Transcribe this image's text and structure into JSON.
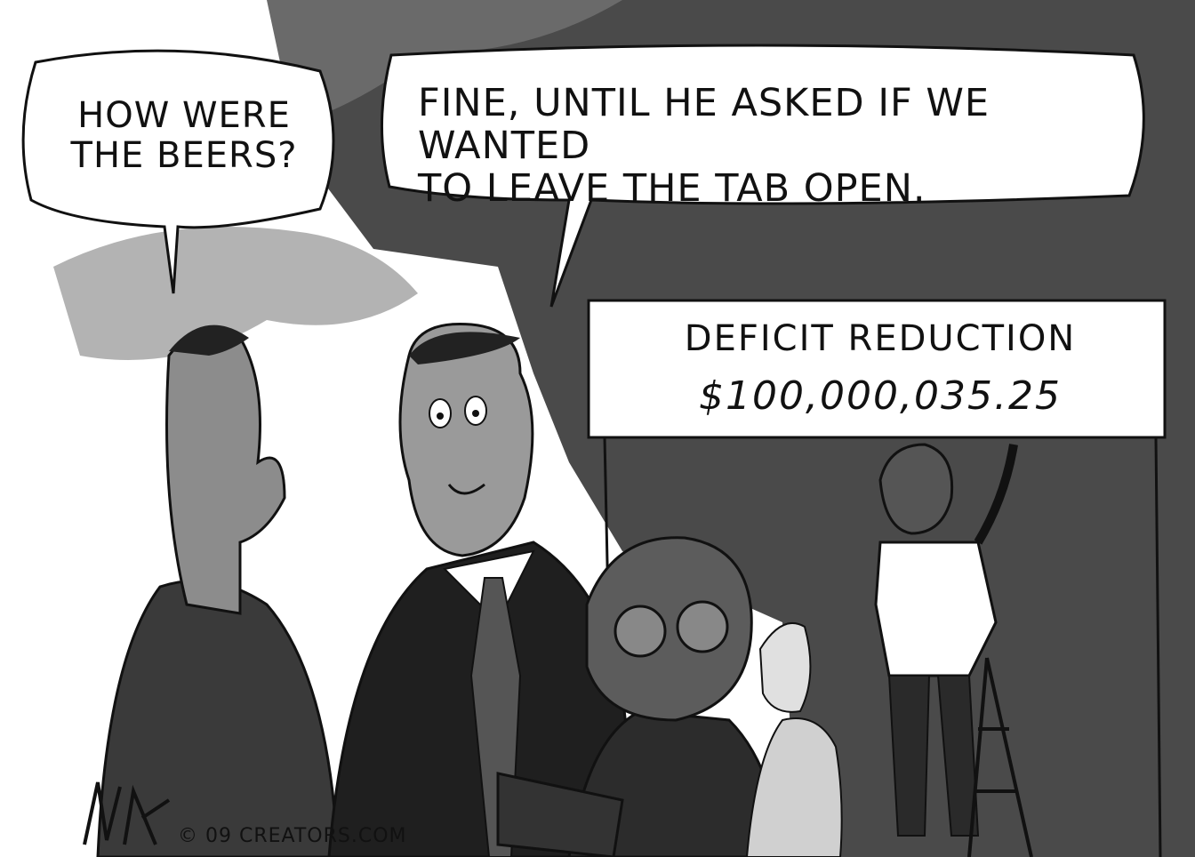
{
  "speech_bubbles": {
    "left": "HOW WERE\nTHE BEERS?",
    "right": "FINE, UNTIL HE ASKED IF WE WANTED\nTO LEAVE THE TAB OPEN."
  },
  "sign": {
    "title": "DEFICIT REDUCTION",
    "amount": "$100,000,035.25"
  },
  "credit": "© 09 CREATORS.COM",
  "colors": {
    "ink": "#111111",
    "background_dark": "#4a4a4a",
    "paper": "#ffffff",
    "suit": "#2a2a2a",
    "skin": "#8c8c8c"
  }
}
